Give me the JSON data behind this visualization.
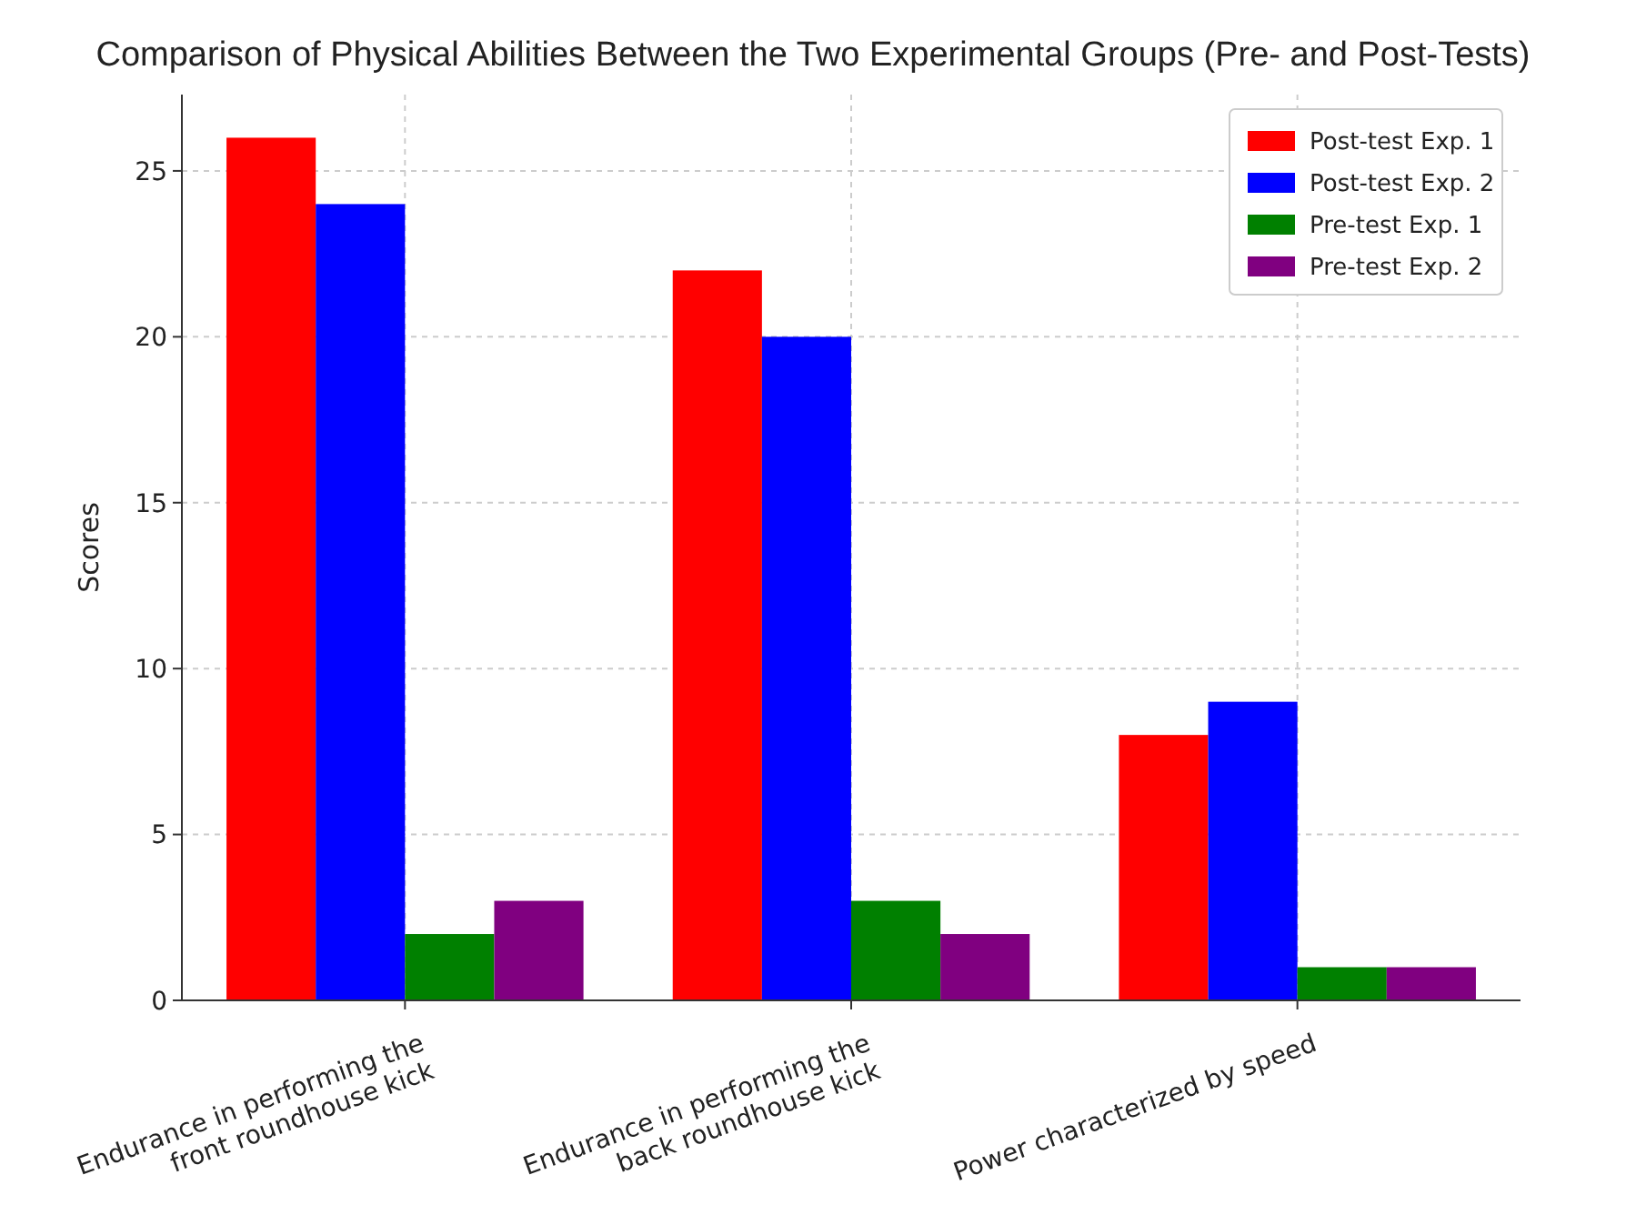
{
  "chart_data": {
    "type": "bar",
    "title": "Comparison of Physical Abilities Between the Two Experimental Groups (Pre- and Post-Tests)",
    "ylabel": "Scores",
    "categories": [
      "Endurance in performing the\nfront roundhouse kick",
      "Endurance in performing the\nback roundhouse kick",
      "Power characterized by speed"
    ],
    "series": [
      {
        "name": "Post-test Exp. 1",
        "color": "#ff0000",
        "values": [
          26,
          22,
          8
        ]
      },
      {
        "name": "Post-test Exp. 2",
        "color": "#0000ff",
        "values": [
          24,
          20,
          9
        ]
      },
      {
        "name": "Pre-test Exp. 1",
        "color": "#008000",
        "values": [
          2,
          3,
          1
        ]
      },
      {
        "name": "Pre-test Exp. 2",
        "color": "#800080",
        "values": [
          3,
          2,
          1
        ]
      }
    ],
    "ylim": [
      0,
      27.3
    ],
    "yticks": [
      0,
      5,
      10,
      15,
      20,
      25
    ],
    "grid": true,
    "legend": "top right"
  }
}
